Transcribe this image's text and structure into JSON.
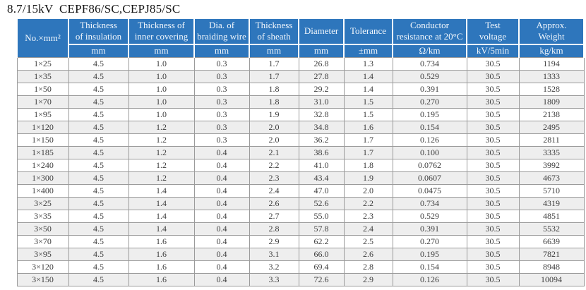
{
  "title": "8.7/15kV  CEPF86/SC,CEPJ85/SC",
  "colors": {
    "header_bg": "#2e76bc",
    "header_text": "#f3f8fd",
    "row_stripe": "#eeeeee",
    "grid_line": "#9b9b9b",
    "body_text": "#3d3d3d"
  },
  "table": {
    "headers": [
      {
        "label": "No.×mm²",
        "unit": ""
      },
      {
        "label": "Thickness\nof insulation",
        "unit": "mm"
      },
      {
        "label": "Thickness of\ninner covering",
        "unit": "mm"
      },
      {
        "label": "Dia. of\nbraiding wire",
        "unit": "mm"
      },
      {
        "label": "Thickness\nof sheath",
        "unit": "mm"
      },
      {
        "label": "Diameter",
        "unit": "mm"
      },
      {
        "label": "Tolerance",
        "unit": "±mm"
      },
      {
        "label": "Conductor\nresistance at 20°C",
        "unit": "Ω/km"
      },
      {
        "label": "Test\nvoltage",
        "unit": "kV/5min"
      },
      {
        "label": "Approx.\nWeight",
        "unit": "kg/km"
      }
    ],
    "rows": [
      [
        "1×25",
        "4.5",
        "1.0",
        "0.3",
        "1.7",
        "26.8",
        "1.3",
        "0.734",
        "30.5",
        "1194"
      ],
      [
        "1×35",
        "4.5",
        "1.0",
        "0.3",
        "1.7",
        "27.8",
        "1.4",
        "0.529",
        "30.5",
        "1333"
      ],
      [
        "1×50",
        "4.5",
        "1.0",
        "0.3",
        "1.8",
        "29.2",
        "1.4",
        "0.391",
        "30.5",
        "1528"
      ],
      [
        "1×70",
        "4.5",
        "1.0",
        "0.3",
        "1.8",
        "31.0",
        "1.5",
        "0.270",
        "30.5",
        "1809"
      ],
      [
        "1×95",
        "4.5",
        "1.0",
        "0.3",
        "1.9",
        "32.8",
        "1.5",
        "0.195",
        "30.5",
        "2138"
      ],
      [
        "1×120",
        "4.5",
        "1.2",
        "0.3",
        "2.0",
        "34.8",
        "1.6",
        "0.154",
        "30.5",
        "2495"
      ],
      [
        "1×150",
        "4.5",
        "1.2",
        "0.3",
        "2.0",
        "36.2",
        "1.7",
        "0.126",
        "30.5",
        "2811"
      ],
      [
        "1×185",
        "4.5",
        "1.2",
        "0.4",
        "2.1",
        "38.6",
        "1.7",
        "0.100",
        "30.5",
        "3335"
      ],
      [
        "1×240",
        "4.5",
        "1.2",
        "0.4",
        "2.2",
        "41.0",
        "1.8",
        "0.0762",
        "30.5",
        "3992"
      ],
      [
        "1×300",
        "4.5",
        "1.2",
        "0.4",
        "2.3",
        "43.4",
        "1.9",
        "0.0607",
        "30.5",
        "4673"
      ],
      [
        "1×400",
        "4.5",
        "1.4",
        "0.4",
        "2.4",
        "47.0",
        "2.0",
        "0.0475",
        "30.5",
        "5710"
      ],
      [
        "3×25",
        "4.5",
        "1.4",
        "0.4",
        "2.6",
        "52.6",
        "2.2",
        "0.734",
        "30.5",
        "4319"
      ],
      [
        "3×35",
        "4.5",
        "1.4",
        "0.4",
        "2.7",
        "55.0",
        "2.3",
        "0.529",
        "30.5",
        "4851"
      ],
      [
        "3×50",
        "4.5",
        "1.4",
        "0.4",
        "2.8",
        "57.8",
        "2.4",
        "0.391",
        "30.5",
        "5532"
      ],
      [
        "3×70",
        "4.5",
        "1.6",
        "0.4",
        "2.9",
        "62.2",
        "2.5",
        "0.270",
        "30.5",
        "6639"
      ],
      [
        "3×95",
        "4.5",
        "1.6",
        "0.4",
        "3.1",
        "66.0",
        "2.6",
        "0.195",
        "30.5",
        "7821"
      ],
      [
        "3×120",
        "4.5",
        "1.6",
        "0.4",
        "3.2",
        "69.4",
        "2.8",
        "0.154",
        "30.5",
        "8948"
      ],
      [
        "3×150",
        "4.5",
        "1.6",
        "0.4",
        "3.3",
        "72.6",
        "2.9",
        "0.126",
        "30.5",
        "10094"
      ]
    ]
  }
}
